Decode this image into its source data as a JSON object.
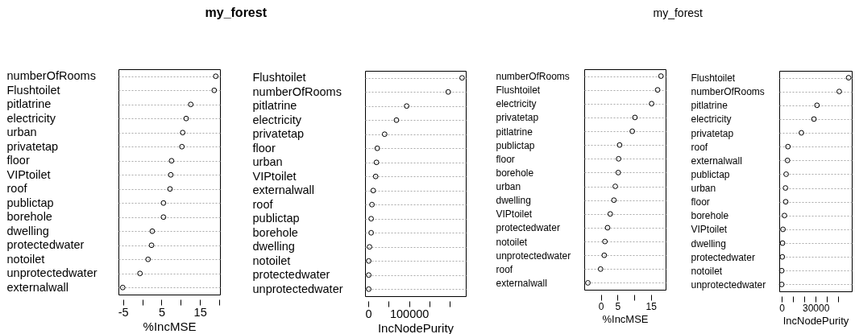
{
  "chart_data": [
    {
      "type": "scatter",
      "orientation": "horizontal",
      "title": "my_forest",
      "xlabel": "%IncMSE",
      "marker": "circle",
      "grid": "y",
      "categories": [
        "numberOfRooms",
        "Flushtoilet",
        "pitlatrine",
        "electricity",
        "urban",
        "privatetap",
        "floor",
        "VIPtoilet",
        "roof",
        "publictap",
        "borehole",
        "dwelling",
        "protectedwater",
        "notoilet",
        "unprotectedwater",
        "externalwall"
      ],
      "values": [
        19.1,
        18.7,
        12.6,
        11.4,
        10.5,
        10.3,
        7.6,
        7.4,
        7.2,
        5.5,
        5.5,
        2.6,
        2.4,
        1.5,
        -0.6,
        -5.1
      ],
      "xlim": [
        -6.2,
        20.2
      ],
      "xticks": [
        -5,
        {
          "value": 0,
          "label": null
        },
        5,
        {
          "value": 10,
          "label": null
        },
        15,
        {
          "value": 20,
          "label": null
        }
      ]
    },
    {
      "type": "scatter",
      "orientation": "horizontal",
      "xlabel": "IncNodePurity",
      "marker": "circle",
      "grid": "y",
      "categories": [
        "Flushtoilet",
        "numberOfRooms",
        "pitlatrine",
        "electricity",
        "privatetap",
        "floor",
        "urban",
        "VIPtoilet",
        "externalwall",
        "roof",
        "publictap",
        "borehole",
        "dwelling",
        "notoilet",
        "protectedwater",
        "unprotectedwater"
      ],
      "values": [
        230000,
        196000,
        94000,
        69000,
        40000,
        22000,
        20000,
        18000,
        12000,
        9000,
        7000,
        7000,
        3000,
        1000,
        1000,
        1000
      ],
      "xlim": [
        -8000,
        239000
      ],
      "xticks": [
        0,
        {
          "value": 50000,
          "label": null
        },
        100000,
        {
          "value": 150000,
          "label": null
        },
        {
          "value": 200000,
          "label": null
        }
      ]
    },
    {
      "type": "scatter",
      "orientation": "horizontal",
      "title": "my_forest",
      "xlabel": "%IncMSE",
      "marker": "circle",
      "grid": "y",
      "categories": [
        "numberOfRooms",
        "Flushtoilet",
        "electricity",
        "privatetap",
        "pitlatrine",
        "publictap",
        "floor",
        "borehole",
        "urban",
        "dwelling",
        "VIPtoilet",
        "protectedwater",
        "notoilet",
        "unprotectedwater",
        "roof",
        "externalwall"
      ],
      "values": [
        18.0,
        17.0,
        15.2,
        10.2,
        9.4,
        5.6,
        5.3,
        5.2,
        4.3,
        3.9,
        2.8,
        2.0,
        1.2,
        1.0,
        -0.1,
        -3.9
      ],
      "xlim": [
        -5,
        19.4
      ],
      "xticks": [
        0,
        5,
        {
          "value": 10,
          "label": null
        },
        15
      ]
    },
    {
      "type": "scatter",
      "orientation": "horizontal",
      "xlabel": "IncNodePurity",
      "marker": "circle",
      "grid": "y",
      "categories": [
        "Flushtoilet",
        "numberOfRooms",
        "pitlatrine",
        "electricity",
        "privatetap",
        "roof",
        "externalwall",
        "publictap",
        "urban",
        "floor",
        "borehole",
        "VIPtoilet",
        "dwelling",
        "protectedwater",
        "notoilet",
        "unprotectedwater"
      ],
      "values": [
        59200,
        50900,
        31200,
        28500,
        17400,
        5500,
        5100,
        3900,
        3300,
        3500,
        2400,
        1100,
        700,
        500,
        0,
        0
      ],
      "xlim": [
        -2200,
        62000
      ],
      "xticks": [
        0,
        {
          "value": 10000,
          "label": null
        },
        {
          "value": 20000,
          "label": null
        },
        30000,
        {
          "value": 40000,
          "label": null
        },
        {
          "value": 50000,
          "label": null
        }
      ]
    }
  ]
}
